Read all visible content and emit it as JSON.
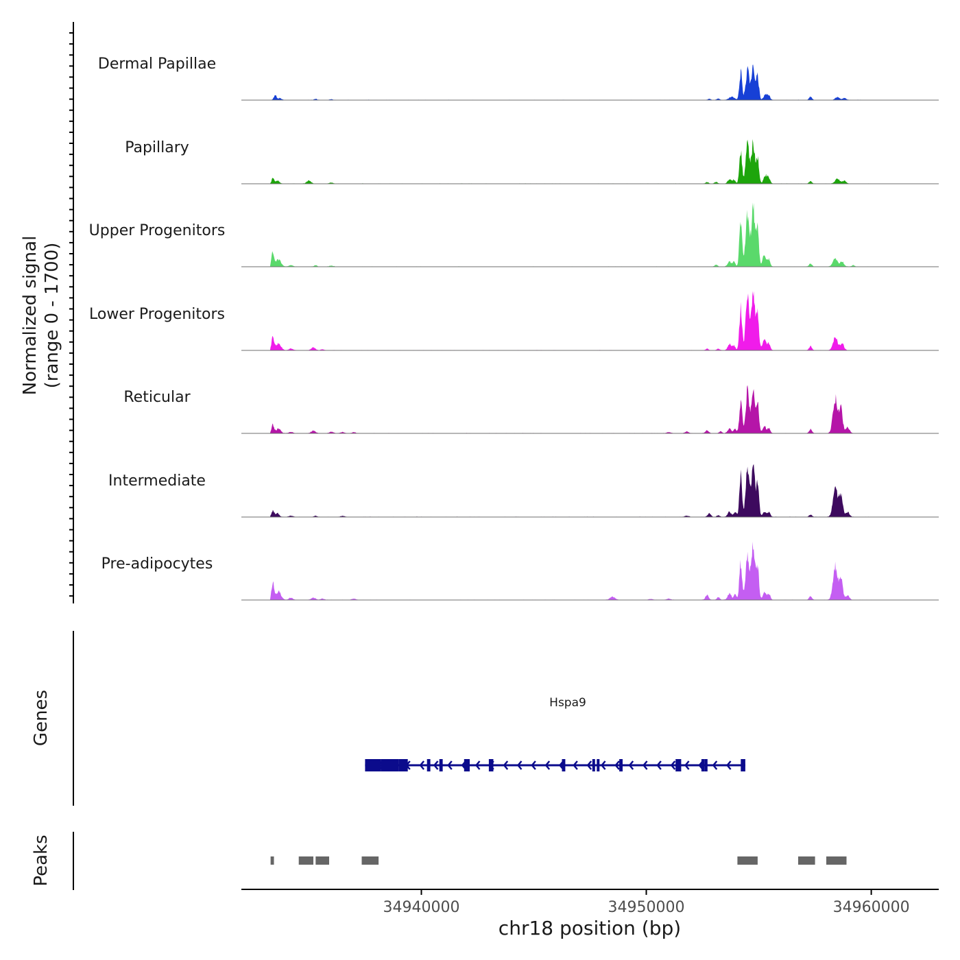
{
  "chart_data": {
    "type": "area",
    "title": "",
    "chromosome": "chr18",
    "xlabel": "chr18 position (bp)",
    "xlim": [
      34932000,
      34963000
    ],
    "x_ticks": [
      34940000,
      34950000,
      34960000
    ],
    "x_tick_labels": [
      "34940000",
      "34950000",
      "34960000"
    ],
    "signal_ylabel_line1": "Normalized signal",
    "signal_ylabel_line2": "(range 0 - 1700)",
    "ylim": [
      0,
      1700
    ],
    "genes_label": "Genes",
    "peaks_label": "Peaks",
    "tracks": [
      {
        "name": "Dermal Papillae",
        "color": "#1740d6",
        "peaks": [
          [
            34933500,
            200,
            60
          ],
          [
            34933700,
            80,
            80
          ],
          [
            34935300,
            40,
            60
          ],
          [
            34936000,
            30,
            60
          ],
          [
            34952800,
            50,
            60
          ],
          [
            34953200,
            60,
            60
          ],
          [
            34953800,
            130,
            120
          ],
          [
            34954200,
            1200,
            60
          ],
          [
            34954500,
            1280,
            80
          ],
          [
            34954750,
            1380,
            80
          ],
          [
            34954950,
            950,
            60
          ],
          [
            34955300,
            240,
            80
          ],
          [
            34955450,
            160,
            60
          ],
          [
            34957300,
            140,
            60
          ],
          [
            34958500,
            120,
            90
          ],
          [
            34958800,
            80,
            80
          ]
        ]
      },
      {
        "name": "Papillary",
        "color": "#1da50b",
        "peaks": [
          [
            34933400,
            250,
            50
          ],
          [
            34933600,
            120,
            80
          ],
          [
            34935000,
            130,
            90
          ],
          [
            34936000,
            40,
            80
          ],
          [
            34952700,
            60,
            60
          ],
          [
            34953100,
            70,
            60
          ],
          [
            34953700,
            180,
            80
          ],
          [
            34953900,
            160,
            60
          ],
          [
            34954200,
            1440,
            60
          ],
          [
            34954500,
            1680,
            80
          ],
          [
            34954750,
            1700,
            80
          ],
          [
            34954950,
            1100,
            60
          ],
          [
            34955300,
            360,
            80
          ],
          [
            34955450,
            200,
            60
          ],
          [
            34957300,
            100,
            60
          ],
          [
            34958500,
            200,
            100
          ],
          [
            34958800,
            120,
            80
          ]
        ]
      },
      {
        "name": "Upper Progenitors",
        "color": "#5ad96b",
        "peaks": [
          [
            34933400,
            620,
            60
          ],
          [
            34933650,
            300,
            110
          ],
          [
            34934200,
            60,
            80
          ],
          [
            34935300,
            60,
            60
          ],
          [
            34936000,
            40,
            80
          ],
          [
            34953100,
            80,
            60
          ],
          [
            34953700,
            220,
            80
          ],
          [
            34953900,
            190,
            60
          ],
          [
            34954200,
            2000,
            60
          ],
          [
            34954500,
            2350,
            80
          ],
          [
            34954750,
            2500,
            80
          ],
          [
            34954950,
            1500,
            60
          ],
          [
            34955250,
            500,
            80
          ],
          [
            34955450,
            300,
            60
          ],
          [
            34957300,
            130,
            60
          ],
          [
            34958400,
            330,
            100
          ],
          [
            34958700,
            220,
            80
          ],
          [
            34959200,
            60,
            60
          ]
        ]
      },
      {
        "name": "Lower Progenitors",
        "color": "#f01cea",
        "peaks": [
          [
            34933400,
            560,
            60
          ],
          [
            34933650,
            300,
            110
          ],
          [
            34934200,
            70,
            80
          ],
          [
            34935200,
            120,
            90
          ],
          [
            34935600,
            40,
            60
          ],
          [
            34952700,
            60,
            60
          ],
          [
            34953200,
            70,
            60
          ],
          [
            34953700,
            250,
            80
          ],
          [
            34953900,
            200,
            60
          ],
          [
            34954200,
            1800,
            60
          ],
          [
            34954500,
            2300,
            80
          ],
          [
            34954750,
            2500,
            80
          ],
          [
            34954950,
            1500,
            60
          ],
          [
            34955250,
            480,
            80
          ],
          [
            34955450,
            280,
            60
          ],
          [
            34957300,
            180,
            60
          ],
          [
            34958400,
            560,
            100
          ],
          [
            34958700,
            300,
            80
          ]
        ]
      },
      {
        "name": "Reticular",
        "color": "#b515a8",
        "peaks": [
          [
            34933400,
            350,
            60
          ],
          [
            34933650,
            220,
            90
          ],
          [
            34934200,
            50,
            80
          ],
          [
            34935200,
            100,
            90
          ],
          [
            34936000,
            60,
            80
          ],
          [
            34936500,
            50,
            80
          ],
          [
            34937000,
            40,
            80
          ],
          [
            34951000,
            50,
            80
          ],
          [
            34951800,
            70,
            80
          ],
          [
            34952700,
            120,
            70
          ],
          [
            34953300,
            80,
            60
          ],
          [
            34953700,
            200,
            80
          ],
          [
            34953950,
            200,
            60
          ],
          [
            34954200,
            1400,
            60
          ],
          [
            34954500,
            1780,
            80
          ],
          [
            34954750,
            1900,
            80
          ],
          [
            34954950,
            1200,
            60
          ],
          [
            34955250,
            280,
            80
          ],
          [
            34955450,
            220,
            60
          ],
          [
            34957300,
            160,
            60
          ],
          [
            34958400,
            1500,
            100
          ],
          [
            34958650,
            1000,
            80
          ],
          [
            34958950,
            250,
            80
          ]
        ]
      },
      {
        "name": "Intermediate",
        "color": "#3d0a5e",
        "peaks": [
          [
            34933400,
            280,
            60
          ],
          [
            34933600,
            180,
            70
          ],
          [
            34934200,
            50,
            80
          ],
          [
            34935300,
            50,
            60
          ],
          [
            34936500,
            40,
            80
          ],
          [
            34951800,
            50,
            80
          ],
          [
            34952800,
            150,
            70
          ],
          [
            34953200,
            70,
            60
          ],
          [
            34953700,
            220,
            80
          ],
          [
            34953950,
            220,
            60
          ],
          [
            34954200,
            1750,
            60
          ],
          [
            34954500,
            2050,
            80
          ],
          [
            34954750,
            2100,
            80
          ],
          [
            34954950,
            1400,
            60
          ],
          [
            34955250,
            230,
            80
          ],
          [
            34955450,
            200,
            60
          ],
          [
            34957300,
            90,
            60
          ],
          [
            34958400,
            1300,
            100
          ],
          [
            34958650,
            950,
            80
          ],
          [
            34958950,
            200,
            80
          ]
        ]
      },
      {
        "name": "Pre-adipocytes",
        "color": "#c45ef2",
        "peaks": [
          [
            34933400,
            700,
            60
          ],
          [
            34933650,
            350,
            110
          ],
          [
            34934200,
            90,
            80
          ],
          [
            34935200,
            90,
            90
          ],
          [
            34935600,
            50,
            80
          ],
          [
            34937000,
            50,
            80
          ],
          [
            34948500,
            130,
            110
          ],
          [
            34950200,
            40,
            80
          ],
          [
            34951000,
            50,
            80
          ],
          [
            34952700,
            200,
            70
          ],
          [
            34953200,
            110,
            60
          ],
          [
            34953700,
            260,
            80
          ],
          [
            34953950,
            230,
            60
          ],
          [
            34954200,
            1600,
            60
          ],
          [
            34954500,
            2050,
            80
          ],
          [
            34954750,
            2300,
            80
          ],
          [
            34954950,
            1400,
            60
          ],
          [
            34955250,
            300,
            80
          ],
          [
            34955450,
            250,
            60
          ],
          [
            34957300,
            150,
            60
          ],
          [
            34958400,
            1400,
            100
          ],
          [
            34958650,
            900,
            80
          ],
          [
            34958950,
            180,
            80
          ]
        ]
      }
    ],
    "gene": {
      "name": "Hspa9",
      "strand": "-",
      "start": 34937500,
      "end": 34954400,
      "exons": [
        [
          34937500,
          34938200
        ],
        [
          34938200,
          34939000
        ],
        [
          34939000,
          34939400
        ],
        [
          34940250,
          34940400
        ],
        [
          34940800,
          34940950
        ],
        [
          34941900,
          34942150
        ],
        [
          34943000,
          34943200
        ],
        [
          34946250,
          34946400
        ],
        [
          34947600,
          34947720
        ],
        [
          34947800,
          34947900
        ],
        [
          34948800,
          34948950
        ],
        [
          34951300,
          34951550
        ],
        [
          34952450,
          34952600
        ],
        [
          34952600,
          34952700
        ],
        [
          34954200,
          34954400
        ]
      ]
    },
    "peak_regions": [
      [
        34933300,
        34933450
      ],
      [
        34934550,
        34935200
      ],
      [
        34935300,
        34935900
      ],
      [
        34937350,
        34938100
      ],
      [
        34954050,
        34954950
      ],
      [
        34956750,
        34957500
      ],
      [
        34958000,
        34958900
      ]
    ]
  }
}
